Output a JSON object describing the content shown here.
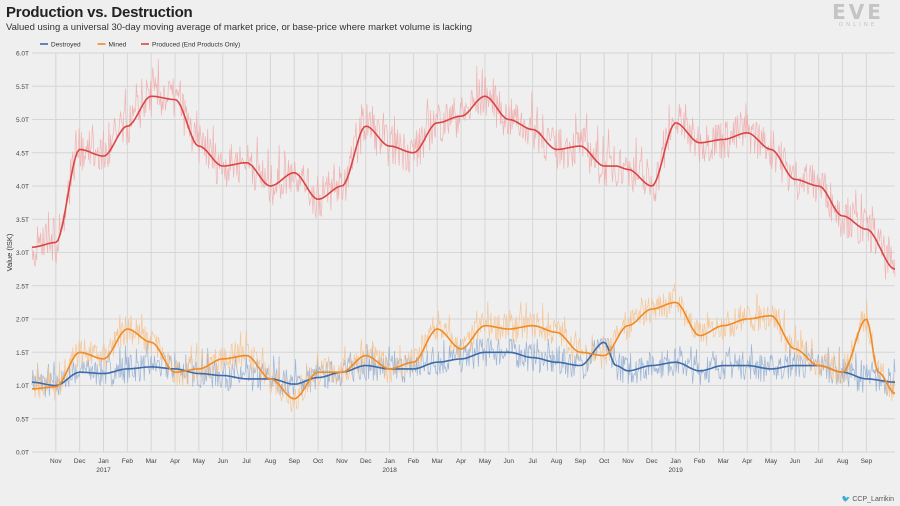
{
  "header": {
    "title": "Production vs. Destruction",
    "subtitle": "Valued using a universal 30-day moving average of market price, or base-price where market volume is lacking"
  },
  "logo": {
    "main": "EVE",
    "sub": "ONLINE"
  },
  "credit": {
    "icon": "twitter-icon",
    "handle": "CCP_Larrikin"
  },
  "chart_data": {
    "type": "line",
    "title": "Production vs. Destruction",
    "ylabel": "Value (ISK)",
    "xlabel": "",
    "ylim": [
      0,
      6.0
    ],
    "yunit": "T",
    "yticks": [
      {
        "value": 0.0,
        "label": "0.0T"
      },
      {
        "value": 0.5,
        "label": "0.5T"
      },
      {
        "value": 1.0,
        "label": "1.0T"
      },
      {
        "value": 1.5,
        "label": "1.5T"
      },
      {
        "value": 2.0,
        "label": "2.0T"
      },
      {
        "value": 2.5,
        "label": "2.5T"
      },
      {
        "value": 3.0,
        "label": "3.0T"
      },
      {
        "value": 3.5,
        "label": "3.5T"
      },
      {
        "value": 4.0,
        "label": "4.0T"
      },
      {
        "value": 4.5,
        "label": "4.5T"
      },
      {
        "value": 5.0,
        "label": "5.0T"
      },
      {
        "value": 5.5,
        "label": "5.5T"
      },
      {
        "value": 6.0,
        "label": "6.0T"
      }
    ],
    "x_unit": "months since Oct 2016",
    "xlim": [
      0,
      36.2
    ],
    "month_ticks": [
      "Nov",
      "Dec",
      "Jan",
      "Feb",
      "Mar",
      "Apr",
      "May",
      "Jun",
      "Jul",
      "Aug",
      "Sep",
      "Oct",
      "Nov",
      "Dec",
      "Jan",
      "Feb",
      "Mar",
      "Apr",
      "May",
      "Jun",
      "Jul",
      "Aug",
      "Sep",
      "Oct",
      "Nov",
      "Dec",
      "Jan",
      "Feb",
      "Mar",
      "Apr",
      "May",
      "Jun",
      "Jul",
      "Aug",
      "Sep"
    ],
    "year_ticks": [
      {
        "month": "Jan",
        "year": "2017"
      },
      {
        "month": "Jan",
        "year": "2018"
      },
      {
        "month": "Jan",
        "year": "2019"
      }
    ],
    "grid": true,
    "legend": "top-left",
    "series": [
      {
        "name": "Destroyed",
        "color": "#3d6aa8",
        "raw_color": "#8eaad0",
        "moving_average": [
          [
            0.0,
            1.05
          ],
          [
            1.0,
            1.0
          ],
          [
            2.0,
            1.2
          ],
          [
            3.0,
            1.18
          ],
          [
            4.0,
            1.25
          ],
          [
            5.0,
            1.28
          ],
          [
            6.0,
            1.25
          ],
          [
            7.0,
            1.18
          ],
          [
            8.0,
            1.15
          ],
          [
            9.0,
            1.1
          ],
          [
            10.0,
            1.1
          ],
          [
            11.0,
            1.02
          ],
          [
            12.0,
            1.12
          ],
          [
            13.0,
            1.2
          ],
          [
            14.0,
            1.3
          ],
          [
            15.0,
            1.25
          ],
          [
            16.0,
            1.25
          ],
          [
            17.0,
            1.35
          ],
          [
            18.0,
            1.4
          ],
          [
            19.0,
            1.5
          ],
          [
            20.0,
            1.5
          ],
          [
            21.0,
            1.42
          ],
          [
            22.0,
            1.35
          ],
          [
            23.0,
            1.3
          ],
          [
            24.0,
            1.65
          ],
          [
            24.5,
            1.3
          ],
          [
            25.0,
            1.22
          ],
          [
            26.0,
            1.3
          ],
          [
            27.0,
            1.35
          ],
          [
            28.0,
            1.22
          ],
          [
            29.0,
            1.3
          ],
          [
            30.0,
            1.3
          ],
          [
            31.0,
            1.25
          ],
          [
            32.0,
            1.3
          ],
          [
            33.0,
            1.3
          ],
          [
            34.0,
            1.2
          ],
          [
            35.0,
            1.1
          ],
          [
            36.2,
            1.05
          ]
        ],
        "raw_range": [
          0.7,
          1.7
        ]
      },
      {
        "name": "Mined",
        "color": "#f08a24",
        "raw_color": "#f6c08a",
        "moving_average": [
          [
            0.0,
            0.95
          ],
          [
            1.0,
            0.98
          ],
          [
            2.0,
            1.5
          ],
          [
            3.0,
            1.4
          ],
          [
            4.0,
            1.85
          ],
          [
            5.0,
            1.65
          ],
          [
            6.0,
            1.2
          ],
          [
            7.0,
            1.25
          ],
          [
            8.0,
            1.4
          ],
          [
            9.0,
            1.45
          ],
          [
            10.0,
            1.1
          ],
          [
            11.0,
            0.8
          ],
          [
            12.0,
            1.2
          ],
          [
            13.0,
            1.2
          ],
          [
            14.0,
            1.45
          ],
          [
            15.0,
            1.25
          ],
          [
            16.0,
            1.35
          ],
          [
            17.0,
            1.85
          ],
          [
            18.0,
            1.55
          ],
          [
            19.0,
            1.9
          ],
          [
            20.0,
            1.85
          ],
          [
            21.0,
            1.9
          ],
          [
            22.0,
            1.8
          ],
          [
            23.0,
            1.5
          ],
          [
            24.0,
            1.45
          ],
          [
            25.0,
            1.9
          ],
          [
            26.0,
            2.15
          ],
          [
            27.0,
            2.25
          ],
          [
            28.0,
            1.75
          ],
          [
            29.0,
            1.9
          ],
          [
            30.0,
            2.0
          ],
          [
            31.0,
            2.05
          ],
          [
            32.0,
            1.55
          ],
          [
            33.0,
            1.3
          ],
          [
            34.0,
            1.2
          ],
          [
            35.0,
            2.0
          ],
          [
            35.5,
            1.2
          ],
          [
            36.2,
            0.88
          ]
        ],
        "raw_range": [
          0.6,
          2.6
        ]
      },
      {
        "name": "Produced (End Products Only)",
        "color": "#d94545",
        "raw_color": "#f0a8a8",
        "moving_average": [
          [
            0.0,
            3.08
          ],
          [
            1.0,
            3.15
          ],
          [
            2.0,
            4.55
          ],
          [
            3.0,
            4.45
          ],
          [
            4.0,
            4.9
          ],
          [
            5.0,
            5.35
          ],
          [
            6.0,
            5.3
          ],
          [
            7.0,
            4.6
          ],
          [
            8.0,
            4.3
          ],
          [
            9.0,
            4.35
          ],
          [
            10.0,
            4.0
          ],
          [
            11.0,
            4.2
          ],
          [
            12.0,
            3.8
          ],
          [
            13.0,
            4.0
          ],
          [
            14.0,
            4.9
          ],
          [
            15.0,
            4.6
          ],
          [
            16.0,
            4.5
          ],
          [
            17.0,
            4.95
          ],
          [
            18.0,
            5.05
          ],
          [
            19.0,
            5.35
          ],
          [
            20.0,
            5.0
          ],
          [
            21.0,
            4.85
          ],
          [
            22.0,
            4.55
          ],
          [
            23.0,
            4.6
          ],
          [
            24.0,
            4.3
          ],
          [
            24.5,
            4.3
          ],
          [
            25.0,
            4.25
          ],
          [
            26.0,
            4.0
          ],
          [
            27.0,
            4.95
          ],
          [
            28.0,
            4.65
          ],
          [
            29.0,
            4.7
          ],
          [
            30.0,
            4.8
          ],
          [
            31.0,
            4.55
          ],
          [
            32.0,
            4.1
          ],
          [
            33.0,
            4.0
          ],
          [
            34.0,
            3.55
          ],
          [
            35.0,
            3.35
          ],
          [
            36.2,
            2.75
          ]
        ],
        "raw_range": [
          2.5,
          6.0
        ]
      }
    ],
    "annotations": []
  }
}
